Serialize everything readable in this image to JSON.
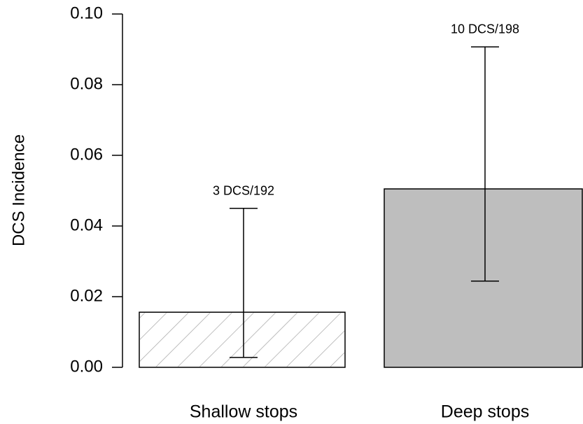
{
  "chart_data": {
    "type": "bar",
    "y_label": "DCS Incidence",
    "categories": [
      "Shallow stops",
      "Deep stops"
    ],
    "values": [
      0.0156,
      0.0505
    ],
    "ci_low": [
      0.0028,
      0.0244
    ],
    "ci_high": [
      0.045,
      0.0907
    ],
    "annotations": [
      "3 DCS/192",
      "10 DCS/198"
    ],
    "fills": [
      "#ffffff",
      "#bebebe"
    ],
    "hatch": [
      true,
      false
    ],
    "hatch_color": "#aaaaaa",
    "ylim": [
      0,
      0.1
    ],
    "yticks": [
      {
        "value": 0,
        "label": "0.00"
      },
      0.02,
      0.04,
      0.06,
      0.08,
      {
        "value": 0.1,
        "label": "0.10"
      }
    ],
    "grid": false
  }
}
